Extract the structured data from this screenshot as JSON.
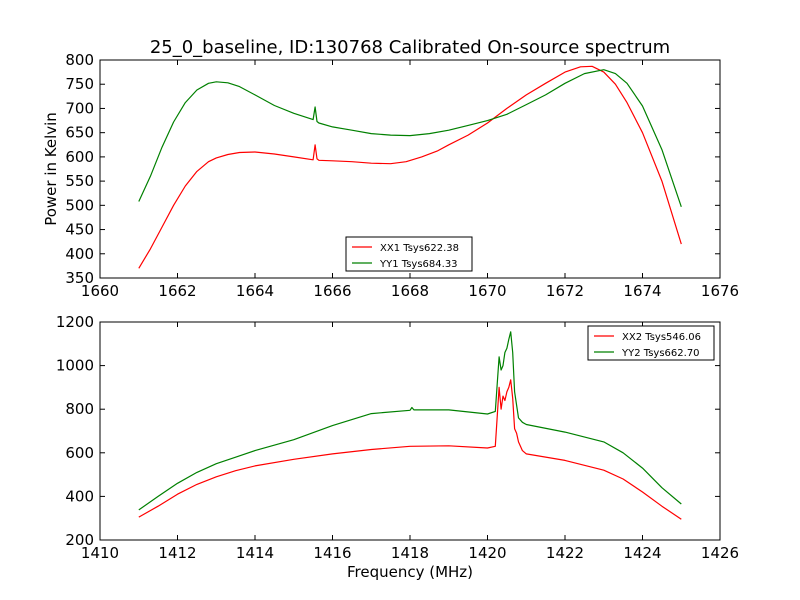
{
  "figure": {
    "title": "25_0_baseline, ID:130768 Calibrated On-source spectrum"
  },
  "colors": {
    "red": "#ff0000",
    "green": "#008000",
    "axis": "#000000"
  },
  "chart_data": [
    {
      "type": "line",
      "title": "25_0_baseline, ID:130768 Calibrated On-source spectrum",
      "xlabel": "",
      "ylabel": "Power in Kelvin",
      "xlim": [
        1660,
        1676
      ],
      "ylim": [
        350,
        800
      ],
      "xticks": [
        1660,
        1662,
        1664,
        1666,
        1668,
        1670,
        1672,
        1674,
        1676
      ],
      "yticks": [
        350,
        400,
        450,
        500,
        550,
        600,
        650,
        700,
        750,
        800
      ],
      "grid": false,
      "legend": "lower-center",
      "series": [
        {
          "name": "XX1 Tsys622.38",
          "color": "#ff0000",
          "x": [
            1661.0,
            1661.3,
            1661.6,
            1661.9,
            1662.2,
            1662.5,
            1662.8,
            1663.0,
            1663.3,
            1663.6,
            1664.0,
            1664.5,
            1665.0,
            1665.5,
            1665.55,
            1665.6,
            1665.65,
            1666.0,
            1666.5,
            1667.0,
            1667.5,
            1667.9,
            1668.3,
            1668.7,
            1669.0,
            1669.5,
            1670.0,
            1670.5,
            1671.0,
            1671.5,
            1672.0,
            1672.4,
            1672.7,
            1673.0,
            1673.3,
            1673.6,
            1674.0,
            1674.5,
            1675.0
          ],
          "y": [
            370,
            410,
            455,
            500,
            540,
            570,
            590,
            598,
            605,
            609,
            610,
            606,
            600,
            594,
            625,
            596,
            593,
            592,
            590,
            587,
            586,
            590,
            600,
            612,
            625,
            645,
            670,
            700,
            728,
            752,
            775,
            786,
            787,
            775,
            750,
            712,
            650,
            550,
            420
          ]
        },
        {
          "name": "YY1 Tsys684.33",
          "color": "#008000",
          "x": [
            1661.0,
            1661.3,
            1661.6,
            1661.9,
            1662.2,
            1662.5,
            1662.8,
            1663.0,
            1663.3,
            1663.6,
            1664.0,
            1664.5,
            1665.0,
            1665.5,
            1665.55,
            1665.6,
            1665.65,
            1666.0,
            1666.5,
            1667.0,
            1667.5,
            1668.0,
            1668.5,
            1669.0,
            1669.5,
            1670.0,
            1670.5,
            1671.0,
            1671.5,
            1672.0,
            1672.5,
            1673.0,
            1673.3,
            1673.6,
            1674.0,
            1674.5,
            1675.0
          ],
          "y": [
            508,
            560,
            620,
            672,
            712,
            738,
            752,
            755,
            753,
            745,
            728,
            706,
            690,
            677,
            703,
            673,
            670,
            662,
            655,
            648,
            645,
            644,
            648,
            655,
            665,
            675,
            688,
            708,
            728,
            752,
            772,
            780,
            772,
            752,
            705,
            615,
            497
          ]
        }
      ]
    },
    {
      "type": "line",
      "title": "",
      "xlabel": "Frequency (MHz)",
      "ylabel": "",
      "xlim": [
        1410,
        1426
      ],
      "ylim": [
        200,
        1200
      ],
      "xticks": [
        1410,
        1412,
        1414,
        1416,
        1418,
        1420,
        1422,
        1424,
        1426
      ],
      "yticks": [
        200,
        400,
        600,
        800,
        1000,
        1200
      ],
      "grid": false,
      "legend": "top-right",
      "series": [
        {
          "name": "XX2 Tsys546.06",
          "color": "#ff0000",
          "x": [
            1411.0,
            1411.5,
            1412.0,
            1412.5,
            1413.0,
            1413.5,
            1414.0,
            1415.0,
            1416.0,
            1417.0,
            1418.0,
            1419.0,
            1420.0,
            1420.2,
            1420.3,
            1420.35,
            1420.4,
            1420.45,
            1420.5,
            1420.55,
            1420.6,
            1420.65,
            1420.7,
            1420.75,
            1420.8,
            1420.9,
            1421.0,
            1422.0,
            1423.0,
            1423.5,
            1424.0,
            1424.5,
            1425.0
          ],
          "y": [
            305,
            355,
            410,
            455,
            490,
            518,
            540,
            570,
            595,
            615,
            630,
            632,
            622,
            630,
            900,
            800,
            860,
            840,
            880,
            900,
            935,
            850,
            710,
            690,
            650,
            610,
            595,
            565,
            520,
            480,
            420,
            355,
            295
          ]
        },
        {
          "name": "YY2 Tsys662.70",
          "color": "#008000",
          "x": [
            1411.0,
            1411.5,
            1412.0,
            1412.5,
            1413.0,
            1413.5,
            1414.0,
            1415.0,
            1416.0,
            1417.0,
            1418.0,
            1418.05,
            1418.1,
            1419.0,
            1420.0,
            1420.2,
            1420.3,
            1420.35,
            1420.4,
            1420.45,
            1420.5,
            1420.55,
            1420.6,
            1420.65,
            1420.7,
            1420.8,
            1420.9,
            1421.0,
            1422.0,
            1423.0,
            1423.5,
            1424.0,
            1424.5,
            1425.0
          ],
          "y": [
            338,
            400,
            460,
            510,
            550,
            580,
            610,
            660,
            725,
            780,
            795,
            808,
            797,
            797,
            778,
            790,
            1040,
            980,
            1000,
            1060,
            1080,
            1120,
            1155,
            1060,
            880,
            760,
            740,
            730,
            695,
            650,
            600,
            530,
            440,
            365
          ]
        }
      ]
    }
  ]
}
